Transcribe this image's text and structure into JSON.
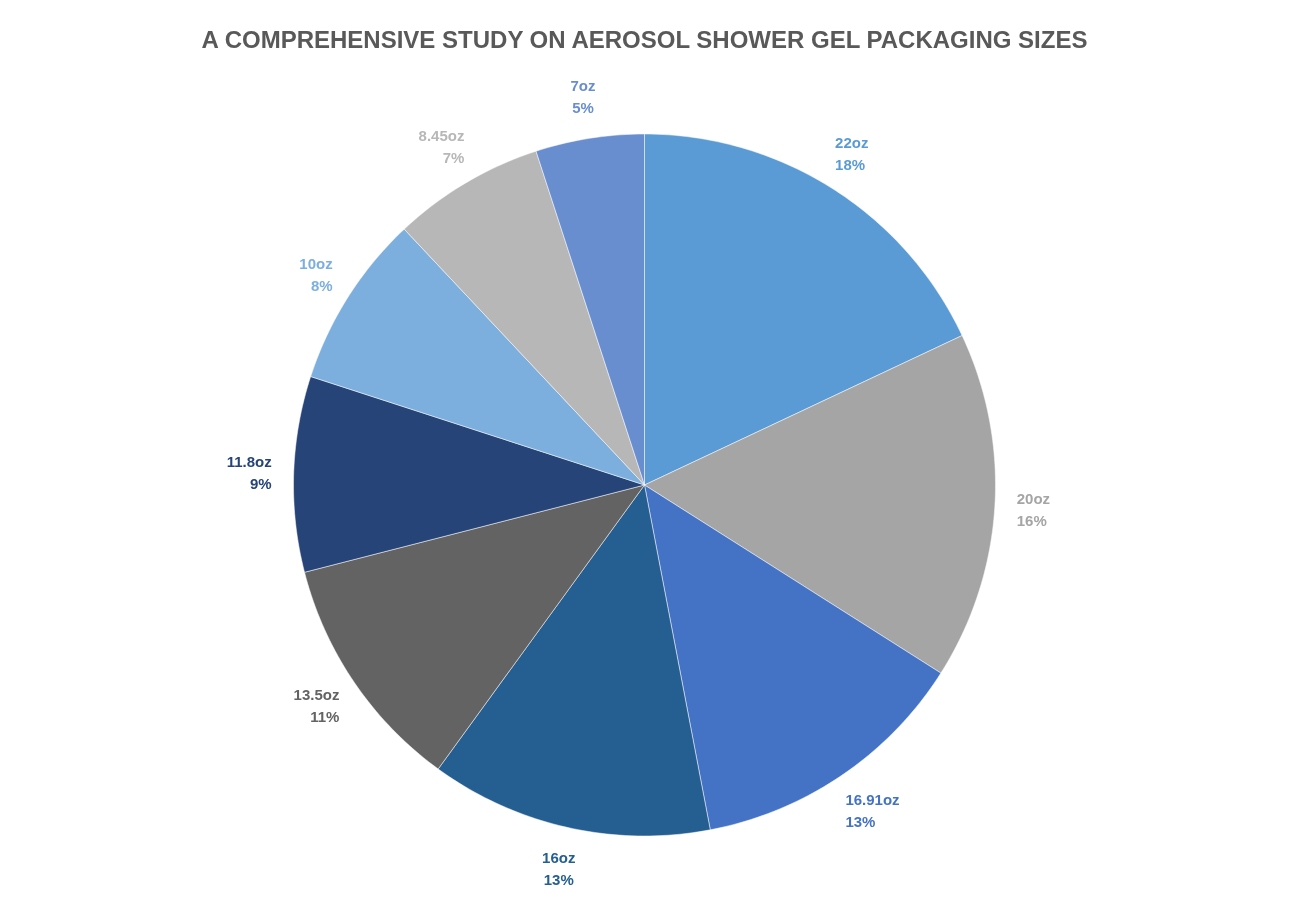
{
  "chart_data": {
    "type": "pie",
    "title": "A COMPREHENSIVE STUDY ON AEROSOL SHOWER GEL PACKAGING SIZES",
    "categories": [
      "22oz",
      "20oz",
      "16.91oz",
      "16oz",
      "13.5oz",
      "11.8oz",
      "10oz",
      "8.45oz",
      "7oz"
    ],
    "values": [
      18,
      16,
      13,
      13,
      11,
      9,
      8,
      7,
      5
    ],
    "value_labels": [
      "18%",
      "16%",
      "13%",
      "13%",
      "11%",
      "9%",
      "8%",
      "7%",
      "5%"
    ],
    "colors": [
      "#5b9bd5",
      "#a5a5a5",
      "#4472c4",
      "#255e91",
      "#636363",
      "#264478",
      "#7cafdd",
      "#b7b7b7",
      "#698ed0"
    ]
  }
}
